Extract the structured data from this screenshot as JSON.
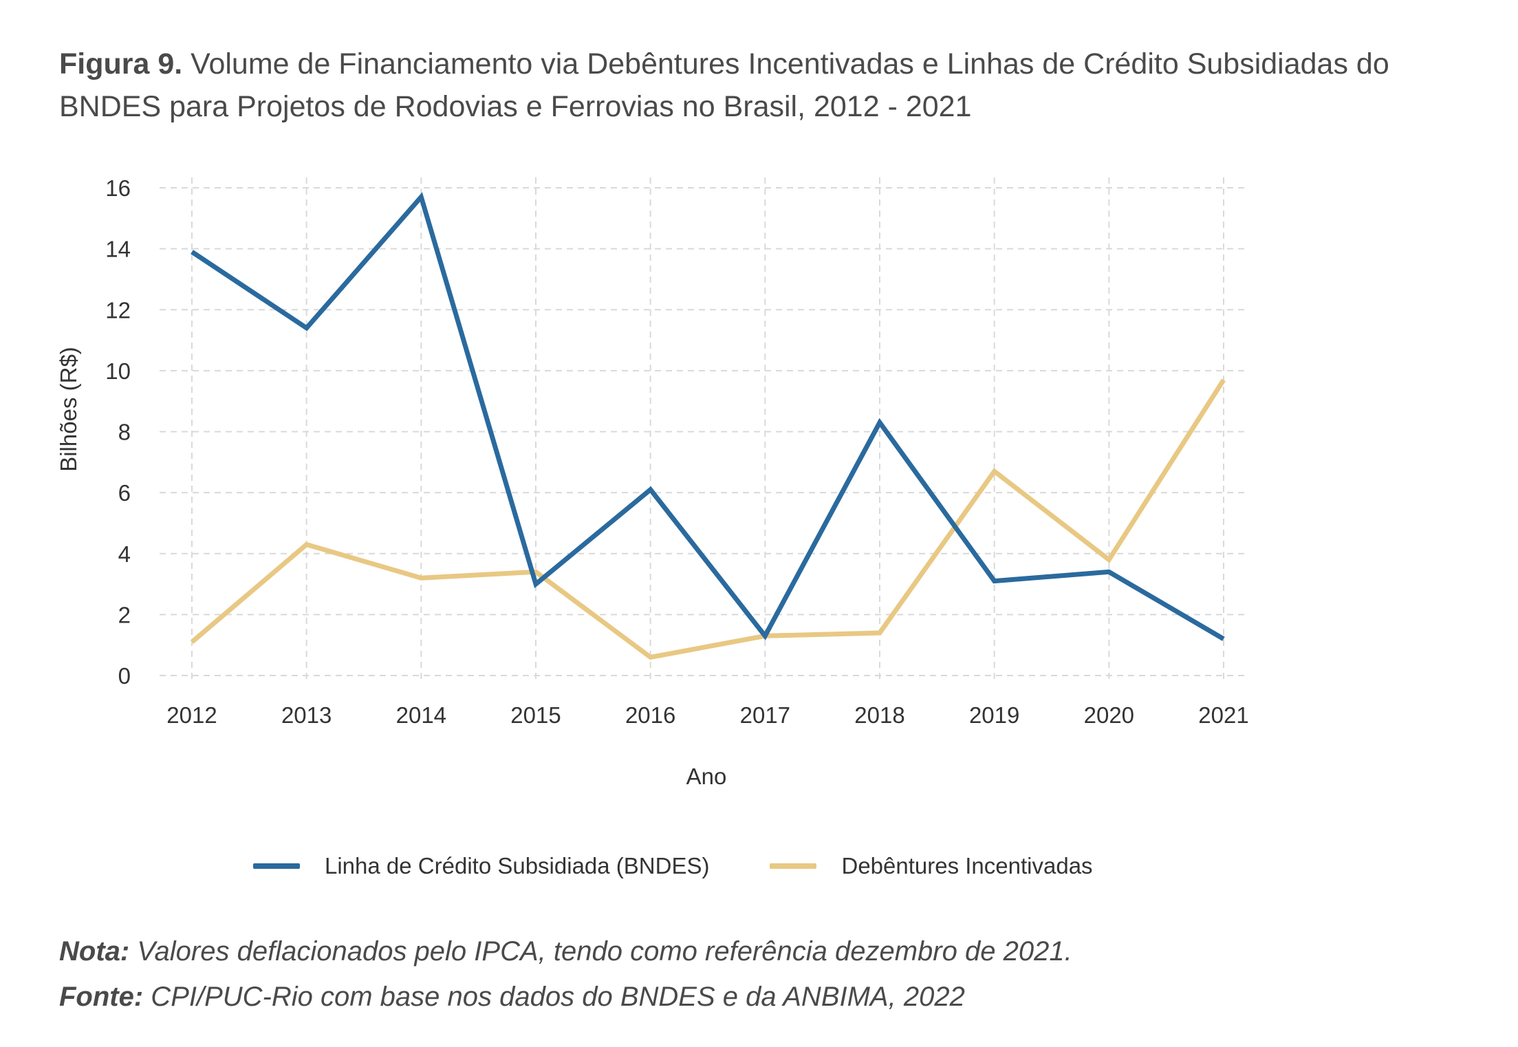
{
  "figure": {
    "label": "Figura 9.",
    "title": "Volume de Financiamento via Debêntures Incentivadas e Linhas de Crédito Subsidiadas do BNDES para Projetos de Rodovias e Ferrovias no Brasil, 2012 - 2021"
  },
  "chart_data": {
    "type": "line",
    "xlabel": "Ano",
    "ylabel": "Bilhões (R$)",
    "x": [
      "2012",
      "2013",
      "2014",
      "2015",
      "2016",
      "2017",
      "2018",
      "2019",
      "2020",
      "2021"
    ],
    "yticks": [
      "0",
      "2",
      "4",
      "6",
      "8",
      "10",
      "12",
      "14",
      "16"
    ],
    "ylim": [
      0,
      16
    ],
    "grid": true,
    "legend_position": "bottom",
    "series": [
      {
        "name": "Linha de Crédito Subsidiada (BNDES)",
        "color": "#2a6a9e",
        "values": [
          13.9,
          11.4,
          15.7,
          3.0,
          6.1,
          1.3,
          8.3,
          3.1,
          3.4,
          1.2
        ]
      },
      {
        "name": "Debêntures Incentivadas",
        "color": "#e8c883",
        "values": [
          1.1,
          4.3,
          3.2,
          3.4,
          0.6,
          1.3,
          1.4,
          6.7,
          3.8,
          9.7
        ]
      }
    ]
  },
  "notes": {
    "nota_label": "Nota:",
    "nota_text": " Valores deflacionados pelo IPCA, tendo como referência dezembro de 2021.",
    "fonte_label": "Fonte:",
    "fonte_text": " CPI/PUC-Rio com base nos dados do BNDES e da ANBIMA, 2022"
  }
}
